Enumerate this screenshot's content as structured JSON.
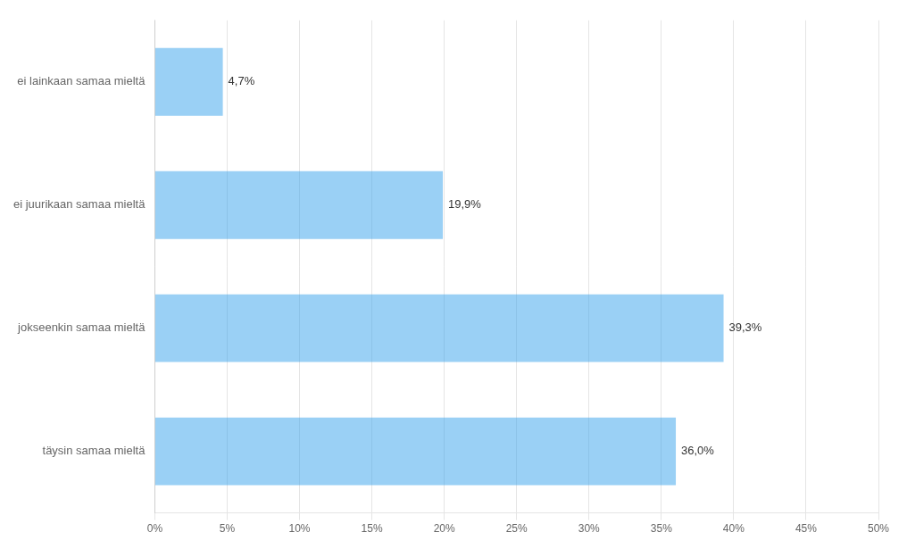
{
  "chart_data": {
    "type": "bar",
    "orientation": "horizontal",
    "categories": [
      "täysin samaa mieltä",
      "jokseenkin samaa mieltä",
      "ei juurikaan samaa mieltä",
      "ei lainkaan samaa mieltä"
    ],
    "values": [
      36.0,
      39.3,
      19.9,
      4.7
    ],
    "value_labels": [
      "36,0%",
      "39,3%",
      "19,9%",
      "4,7%"
    ],
    "data_labels": true,
    "xlim": [
      0,
      50
    ],
    "xticks": [
      {
        "value": 0,
        "label": "0%"
      },
      {
        "value": 5,
        "label": "5%"
      },
      {
        "value": 10,
        "label": "10%"
      },
      {
        "value": 15,
        "label": "15%"
      },
      {
        "value": 20,
        "label": "20%"
      },
      {
        "value": 25,
        "label": "25%"
      },
      {
        "value": 30,
        "label": "30%"
      },
      {
        "value": 35,
        "label": "35%"
      },
      {
        "value": 40,
        "label": "40%"
      },
      {
        "value": 45,
        "label": "45%"
      },
      {
        "value": 50,
        "label": "50%"
      }
    ],
    "grid": "x"
  }
}
